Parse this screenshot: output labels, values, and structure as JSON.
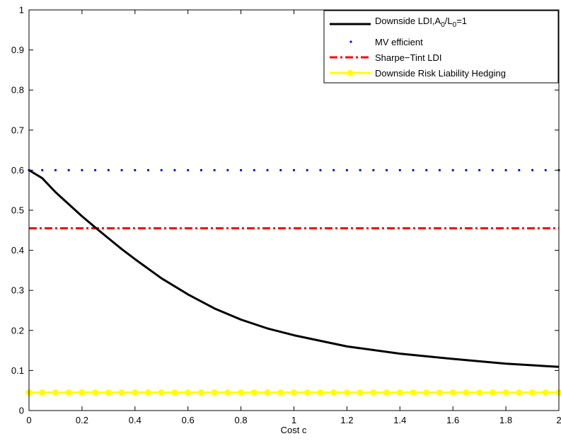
{
  "chart_data": {
    "type": "line",
    "title": "",
    "xlabel": "Cost c",
    "ylabel": "",
    "xlim": [
      0,
      2
    ],
    "ylim": [
      0,
      1
    ],
    "xticks": [
      0,
      0.2,
      0.4,
      0.6,
      0.8,
      1,
      1.2,
      1.4,
      1.6,
      1.8,
      2
    ],
    "xtick_labels": [
      "0",
      "0.2",
      "0.4",
      "0.6",
      "0.8",
      "1",
      "1.2",
      "1.4",
      "1.6",
      "1.8",
      "2"
    ],
    "yticks": [
      0,
      0.1,
      0.2,
      0.3,
      0.4,
      0.5,
      0.6,
      0.7,
      0.8,
      0.9,
      1
    ],
    "ytick_labels": [
      "0",
      "0.1",
      "0.2",
      "0.3",
      "0.4",
      "0.5",
      "0.6",
      "0.7",
      "0.8",
      "0.9",
      "1"
    ],
    "grid": false,
    "legend_position": "top-right",
    "series": [
      {
        "name": "Downside LDI,A0/L0=1",
        "style": "solid",
        "color": "#000000",
        "x": [
          0,
          0.05,
          0.1,
          0.15,
          0.2,
          0.25,
          0.3,
          0.35,
          0.4,
          0.5,
          0.6,
          0.7,
          0.8,
          0.9,
          1.0,
          1.2,
          1.4,
          1.6,
          1.8,
          2.0
        ],
        "y": [
          0.6,
          0.58,
          0.545,
          0.515,
          0.485,
          0.457,
          0.43,
          0.403,
          0.378,
          0.33,
          0.29,
          0.255,
          0.227,
          0.205,
          0.188,
          0.16,
          0.142,
          0.129,
          0.117,
          0.109
        ]
      },
      {
        "name": "MV efficient",
        "style": "dotted",
        "color": "#0000ff",
        "x": [
          0,
          2
        ],
        "y": [
          0.6,
          0.6
        ]
      },
      {
        "name": "Sharpe−Tint LDI",
        "style": "dashdot",
        "color": "#ff0000",
        "x": [
          0,
          2
        ],
        "y": [
          0.455,
          0.455
        ]
      },
      {
        "name": "Downside Risk Liability Hedging",
        "style": "solid-markers",
        "color": "#ffff00",
        "x": [
          0,
          0.05,
          0.1,
          0.15,
          0.2,
          0.25,
          0.3,
          0.35,
          0.4,
          0.45,
          0.5,
          0.55,
          0.6,
          0.65,
          0.7,
          0.75,
          0.8,
          0.85,
          0.9,
          0.95,
          1.0,
          1.05,
          1.1,
          1.15,
          1.2,
          1.25,
          1.3,
          1.35,
          1.4,
          1.45,
          1.5,
          1.55,
          1.6,
          1.65,
          1.7,
          1.75,
          1.8,
          1.85,
          1.9,
          1.95,
          2.0
        ],
        "y": [
          0.045,
          0.045,
          0.045,
          0.045,
          0.045,
          0.045,
          0.045,
          0.045,
          0.045,
          0.045,
          0.045,
          0.045,
          0.045,
          0.045,
          0.045,
          0.045,
          0.045,
          0.045,
          0.045,
          0.045,
          0.045,
          0.045,
          0.045,
          0.045,
          0.045,
          0.045,
          0.045,
          0.045,
          0.045,
          0.045,
          0.045,
          0.045,
          0.045,
          0.045,
          0.045,
          0.045,
          0.045,
          0.045,
          0.045,
          0.045,
          0.045
        ]
      }
    ],
    "legend": {
      "entries": [
        {
          "label_main": "Downside LDI,A",
          "sub1": "0",
          "mid": "/L",
          "sub2": "0",
          "tail": "=1"
        },
        {
          "label": "MV efficient"
        },
        {
          "label": "Sharpe−Tint LDI"
        },
        {
          "label": "Downside Risk Liability Hedging"
        }
      ]
    }
  }
}
